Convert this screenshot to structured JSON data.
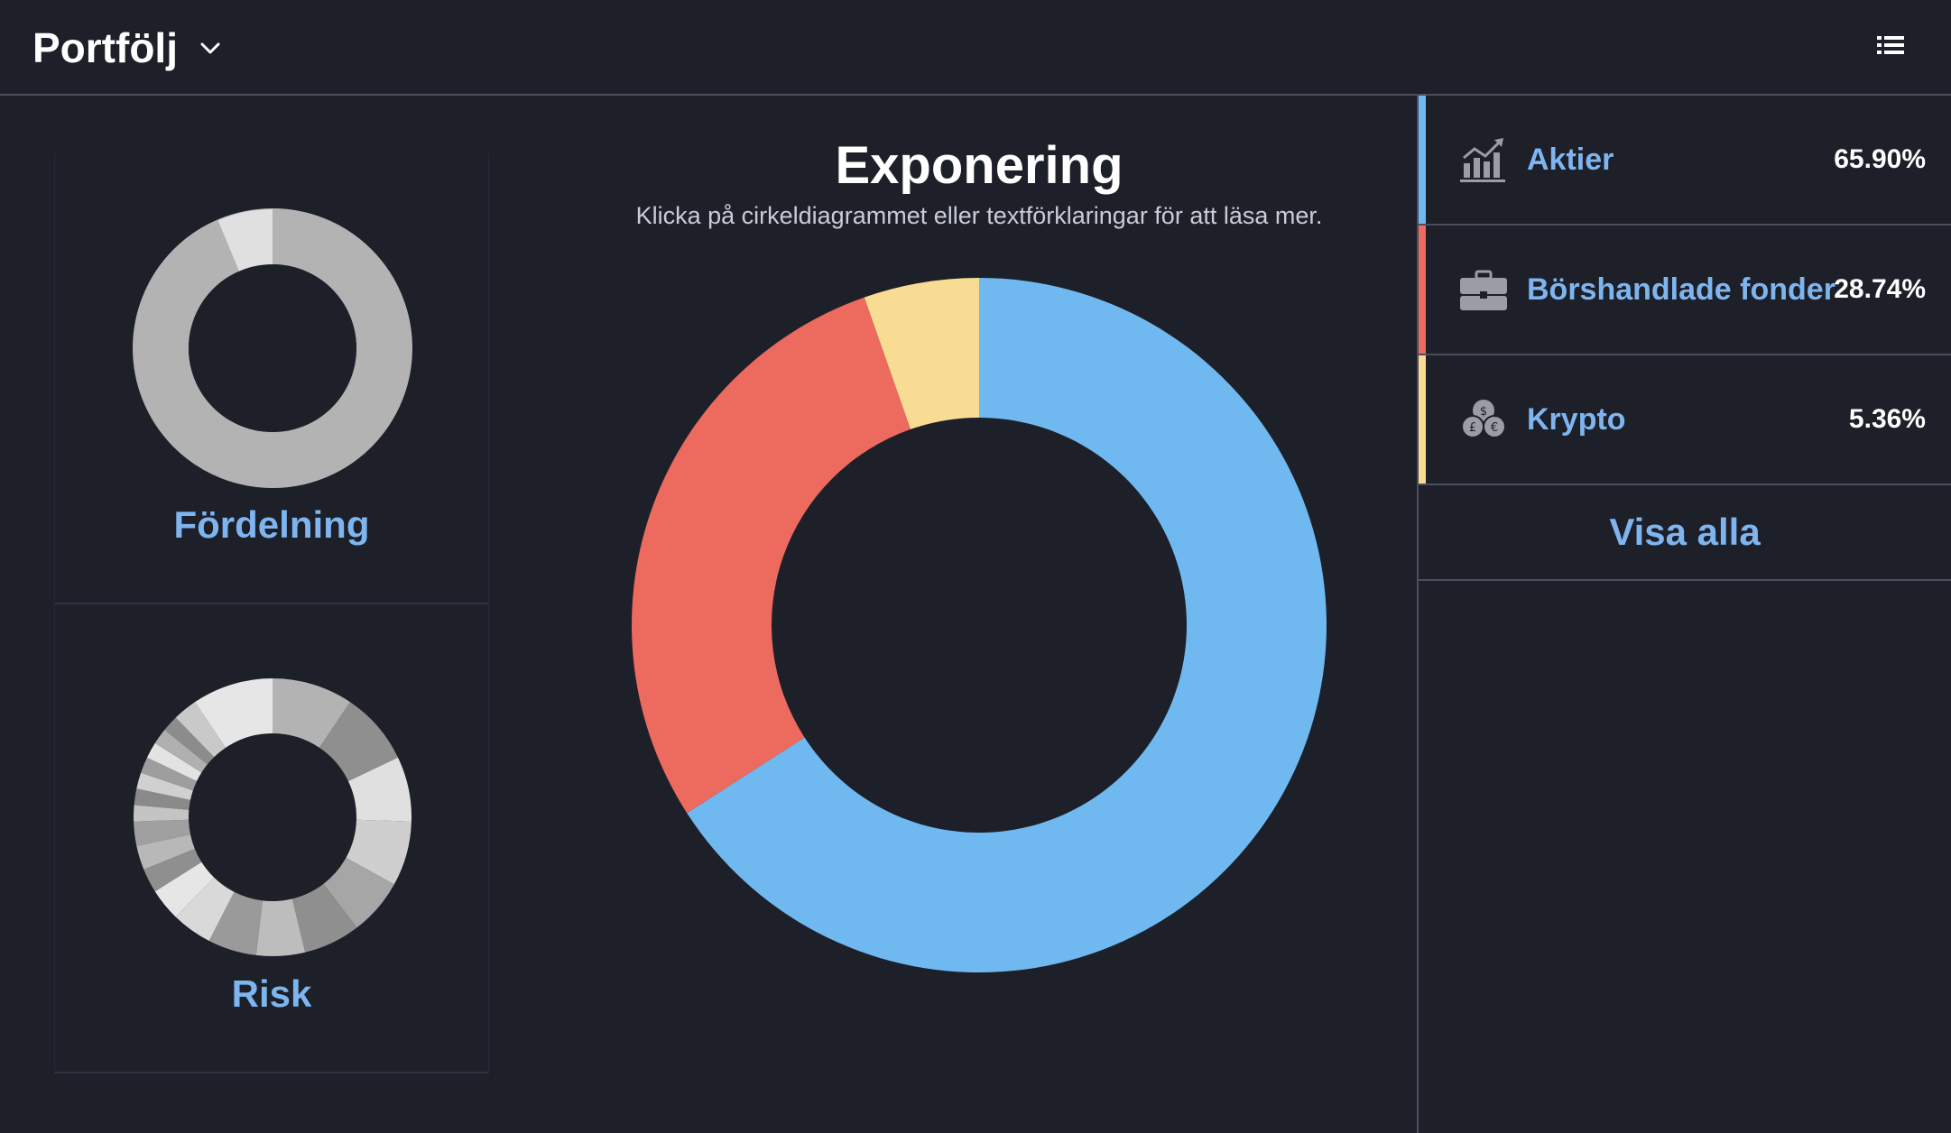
{
  "header": {
    "title": "Portfölj"
  },
  "cards": {
    "distribution_label": "Fördelning",
    "risk_label": "Risk"
  },
  "exposure": {
    "title": "Exponering",
    "subtitle": "Klicka på cirkeldiagrammet eller textförklaringar för att läsa mer."
  },
  "legend": {
    "items": [
      {
        "name": "Aktier",
        "value": "65.90%",
        "color": "#6fb9f0",
        "icon": "stock-chart-icon"
      },
      {
        "name": "Börshandlade fonder",
        "value": "28.74%",
        "color": "#ec6a5e",
        "icon": "briefcase-icon"
      },
      {
        "name": "Krypto",
        "value": "5.36%",
        "color": "#f9dc94",
        "icon": "coins-icon"
      }
    ],
    "show_all": "Visa alla"
  },
  "chart_data": {
    "type": "pie",
    "title": "Exponering",
    "categories": [
      "Aktier",
      "Börshandlade fonder",
      "Krypto"
    ],
    "values": [
      65.9,
      28.74,
      5.36
    ],
    "colors": [
      "#6fb9f0",
      "#ec6a5e",
      "#f9dc94"
    ]
  }
}
